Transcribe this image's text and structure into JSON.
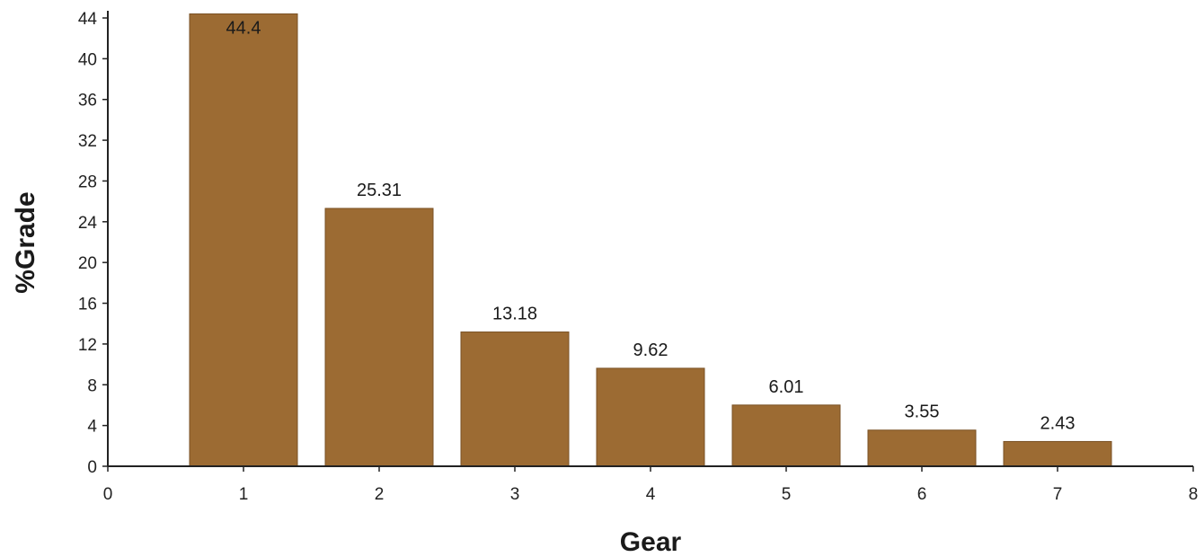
{
  "chart_data": {
    "type": "bar",
    "title": "",
    "xlabel": "Gear",
    "ylabel": "%Grade",
    "x": [
      1,
      2,
      3,
      4,
      5,
      6,
      7
    ],
    "values": [
      44.4,
      25.31,
      13.18,
      9.62,
      6.01,
      3.55,
      2.43
    ],
    "data_labels": [
      "44.4",
      "25.31",
      "13.18",
      "9.62",
      "6.01",
      "3.55",
      "2.43"
    ],
    "xlim": [
      0,
      8
    ],
    "ylim": [
      0,
      44
    ],
    "x_ticks": [
      "0",
      "1",
      "2",
      "3",
      "4",
      "5",
      "6",
      "7",
      "8"
    ],
    "y_ticks": [
      "0",
      "4",
      "8",
      "12",
      "16",
      "20",
      "24",
      "28",
      "32",
      "36",
      "40",
      "44"
    ],
    "grid": false,
    "legend": "none",
    "bar_color": "#9c6b33",
    "bar_edge_color": "#7a5225",
    "axis_color": "#222222"
  }
}
